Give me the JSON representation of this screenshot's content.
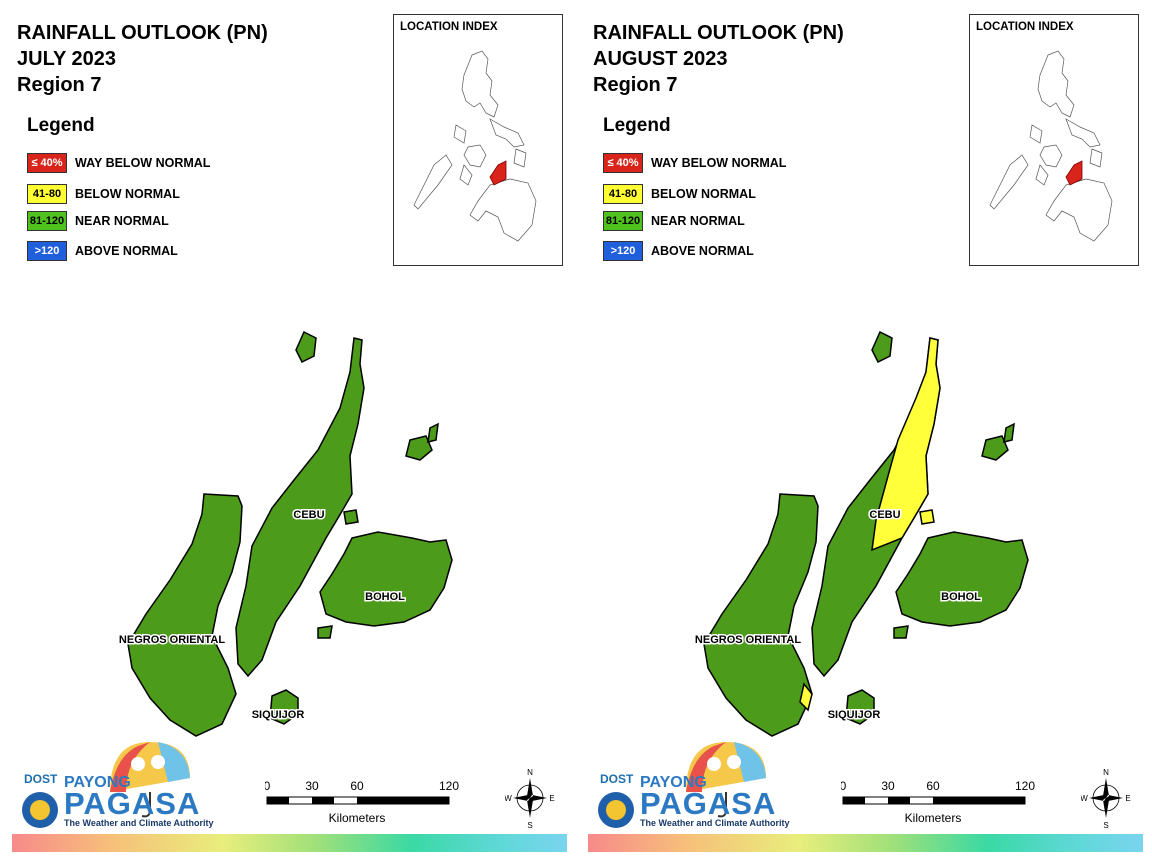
{
  "panels": [
    {
      "title_line1": "RAINFALL OUTLOOK (PN)",
      "title_line2": "JULY 2023",
      "title_line3": "Region 7",
      "cebu_fill": "green",
      "cebu_yellow_north": false,
      "negros_yellow_tip": false
    },
    {
      "title_line1": "RAINFALL OUTLOOK (PN)",
      "title_line2": "AUGUST 2023",
      "title_line3": "Region 7",
      "cebu_fill": "yellow",
      "cebu_yellow_north": true,
      "negros_yellow_tip": true
    }
  ],
  "legend": {
    "title": "Legend",
    "items": [
      {
        "code": "≤ 40%",
        "label": "WAY BELOW NORMAL",
        "color": "#d9241b",
        "text_color": "#ffffff"
      },
      {
        "code": "41-80",
        "label": "BELOW NORMAL",
        "color": "#ffff33",
        "text_color": "#000000"
      },
      {
        "code": "81-120",
        "label": "NEAR NORMAL",
        "color": "#4fc21e",
        "text_color": "#000000"
      },
      {
        "code": ">120",
        "label": "ABOVE NORMAL",
        "color": "#1f5fdc",
        "text_color": "#ffffff"
      }
    ]
  },
  "location_index": {
    "title": "LOCATION INDEX"
  },
  "places": {
    "cebu": "CEBU",
    "bohol": "BOHOL",
    "negros": "NEGROS ORIENTAL",
    "siquijor": "SIQUIJOR"
  },
  "scale": {
    "ticks": [
      "0",
      "30",
      "60",
      "120"
    ],
    "unit": "Kilometers"
  },
  "compass": {
    "n": "N",
    "s": "S",
    "e": "E",
    "w": "W"
  },
  "logo": {
    "dost": "DOST",
    "payong": "PAYONG",
    "pagasa": "PAGASA",
    "tagline": "The Weather and Climate Authority"
  },
  "colors": {
    "land_green": "#4d9b1a",
    "land_yellow": "#ffff3a",
    "highlight_red": "#d9241b"
  }
}
